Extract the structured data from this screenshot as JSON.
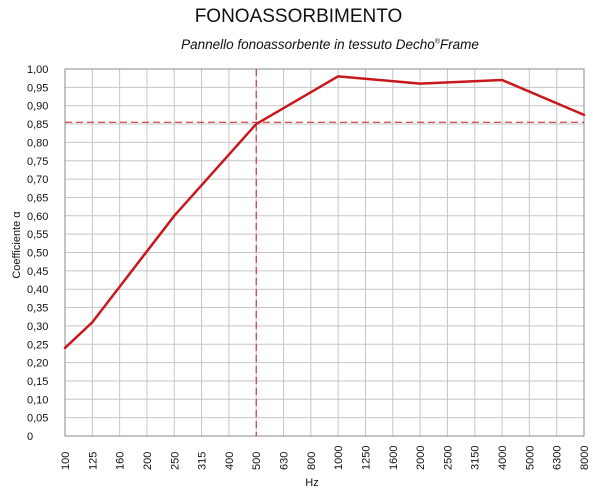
{
  "chart_data": {
    "type": "line",
    "title": "FONOASSORBIMENTO",
    "subtitle": "Pannello fonoassorbente in tessuto Decho",
    "subtitle_sup": "®",
    "subtitle_end": "Frame",
    "xlabel": "Hz",
    "ylabel": "Coefficiente α",
    "categories": [
      "100",
      "125",
      "160",
      "200",
      "250",
      "315",
      "400",
      "500",
      "630",
      "800",
      "1000",
      "1250",
      "1600",
      "2000",
      "2500",
      "3150",
      "4000",
      "5000",
      "6300",
      "8000"
    ],
    "y_tick_labels": [
      "0",
      "0,05",
      "0,10",
      "0,15",
      "0,20",
      "0,25",
      "0,30",
      "0,35",
      "0,40",
      "0,45",
      "0,50",
      "0,55",
      "0,60",
      "0,65",
      "0,70",
      "0,75",
      "0,80",
      "0,85",
      "0,90",
      "0,95",
      "1,00"
    ],
    "ylim": [
      0,
      1.0
    ],
    "grid": true,
    "series": [
      {
        "points": [
          {
            "x": "100",
            "y": 0.24
          },
          {
            "x": "125",
            "y": 0.31
          },
          {
            "x": "250",
            "y": 0.6
          },
          {
            "x": "500",
            "y": 0.85
          },
          {
            "x": "1000",
            "y": 0.98
          },
          {
            "x": "2000",
            "y": 0.96
          },
          {
            "x": "4000",
            "y": 0.97
          },
          {
            "x": "8000",
            "y": 0.875
          }
        ],
        "color": "#c8181e"
      }
    ],
    "reference_lines": {
      "x": "500",
      "y": 0.855,
      "color": "#c8181e",
      "style": "dashed"
    },
    "highlight_tick": "500",
    "highlight_color": "#c8181e",
    "grid_color": "#c6c6c6"
  }
}
